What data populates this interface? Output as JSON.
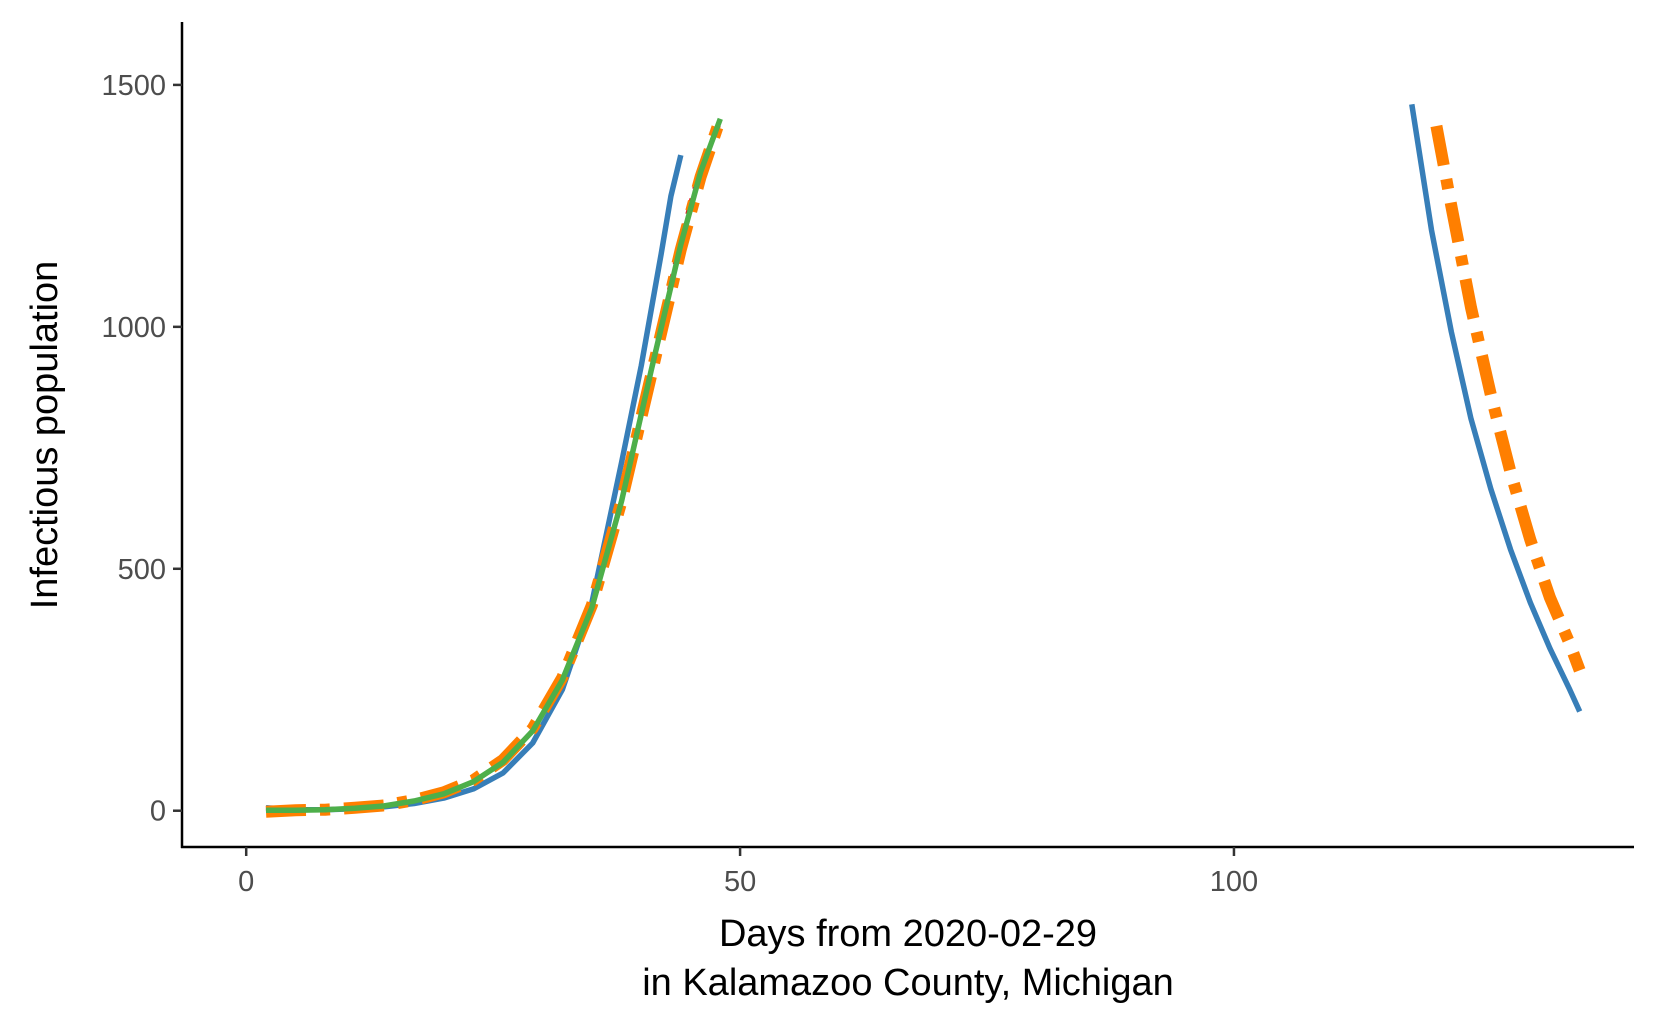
{
  "chart_data": {
    "type": "line",
    "title": "",
    "xlabel_lines": [
      "Days from 2020-02-29",
      "in Kalamazoo County, Michigan"
    ],
    "ylabel": "Infectious population",
    "xlim": [
      -6.5,
      140.5
    ],
    "ylim": [
      -75,
      1630
    ],
    "x_ticks": [
      0,
      50,
      100
    ],
    "y_ticks": [
      0,
      500,
      1000,
      1500
    ],
    "grid": false,
    "legend": "none",
    "series": [
      {
        "color": "#377eb8",
        "style": "solid",
        "segments": [
          {
            "x": [
              2,
              5,
              8,
              11,
              14,
              17,
              20,
              23,
              26,
              29,
              32,
              35,
              38,
              40,
              42,
              43,
              44
            ],
            "y": [
              6,
              2,
              2,
              4,
              8,
              15,
              26,
              45,
              78,
              140,
              250,
              430,
              720,
              920,
              1150,
              1270,
              1355
            ]
          },
          {
            "x": [
              118,
              120,
              122,
              124,
              126,
              128,
              130,
              132,
              134,
              135
            ],
            "y": [
              1460,
              1200,
              990,
              810,
              665,
              540,
              430,
              335,
              250,
              205
            ]
          }
        ]
      },
      {
        "color": "#e41a1c",
        "style": "dashed",
        "segments": [
          {
            "x": [
              2,
              5,
              8,
              11,
              14,
              17,
              20,
              23,
              26,
              29,
              32,
              35,
              38,
              41,
              44,
              46,
              48
            ],
            "y": [
              3,
              2,
              2,
              5,
              10,
              20,
              35,
              60,
              100,
              165,
              270,
              420,
              640,
              910,
              1180,
              1330,
              1425
            ]
          }
        ]
      },
      {
        "color": "#ff7f00",
        "style": "dashdot",
        "segments": [
          {
            "x": [
              2,
              5,
              8,
              11,
              14,
              17,
              20,
              23,
              26,
              29,
              32,
              35,
              38,
              41,
              44,
              46,
              48
            ],
            "y": [
              -2,
              1,
              2,
              6,
              11,
              22,
              38,
              63,
              105,
              170,
              275,
              425,
              640,
              900,
              1160,
              1310,
              1430
            ]
          },
          {
            "x": [
              120.5,
              122,
              124,
              126,
              128,
              130,
              132,
              134,
              135
            ],
            "y": [
              1415,
              1250,
              1040,
              860,
              700,
              560,
              440,
              345,
              290
            ]
          }
        ]
      },
      {
        "color": "#4daf4a",
        "style": "solid",
        "segments": [
          {
            "x": [
              2,
              5,
              8,
              11,
              14,
              17,
              20,
              23,
              26,
              29,
              32,
              35,
              38,
              41,
              44,
              46,
              48
            ],
            "y": [
              1,
              1,
              2,
              5,
              10,
              20,
              35,
              60,
              100,
              165,
              270,
              420,
              640,
              910,
              1170,
              1320,
              1430
            ]
          }
        ]
      }
    ]
  }
}
